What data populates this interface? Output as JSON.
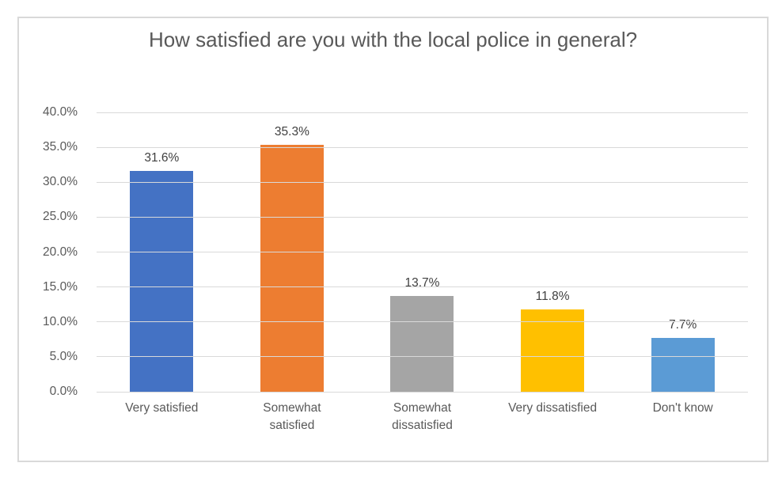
{
  "chart_data": {
    "type": "bar",
    "title": "How satisfied are you with the local police in general?",
    "categories": [
      "Very satisfied",
      "Somewhat satisfied",
      "Somewhat dissatisfied",
      "Very dissatisfied",
      "Don't know"
    ],
    "values": [
      31.6,
      35.3,
      13.7,
      11.8,
      7.7
    ],
    "data_labels": [
      "31.6%",
      "35.3%",
      "13.7%",
      "11.8%",
      "7.7%"
    ],
    "bar_colors": [
      "#4472C4",
      "#ED7D31",
      "#A5A5A5",
      "#FFC000",
      "#5B9BD5"
    ],
    "xlabel": "",
    "ylabel": "",
    "ylim": [
      0,
      40
    ],
    "ytick_step": 5,
    "ytick_labels": [
      "0.0%",
      "5.0%",
      "10.0%",
      "15.0%",
      "20.0%",
      "25.0%",
      "30.0%",
      "35.0%",
      "40.0%"
    ],
    "grid": true,
    "legend": "none",
    "colors": {
      "gridline": "#d9d9d9",
      "frame_border": "#d9d9d9",
      "title_text": "#595959",
      "axis_text": "#595959",
      "data_label_text": "#404040",
      "background": "#ffffff"
    }
  }
}
